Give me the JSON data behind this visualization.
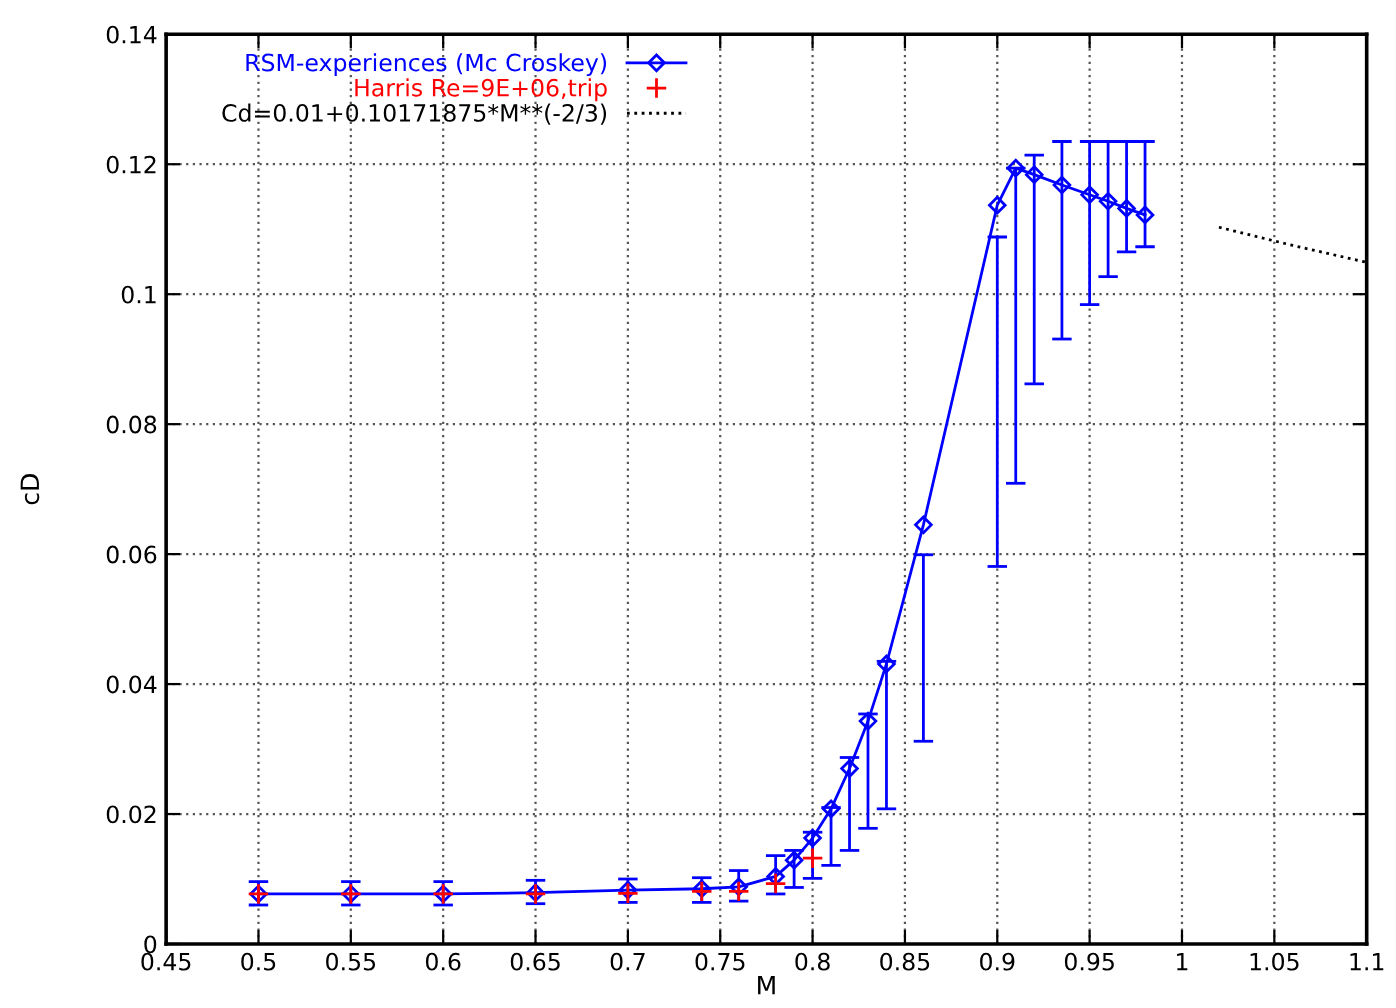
{
  "chart_data": {
    "type": "line",
    "xlabel": "M",
    "ylabel": "cD",
    "xlim": [
      0.45,
      1.1
    ],
    "xticks": [
      0.45,
      0.5,
      0.55,
      0.6,
      0.65,
      0.7,
      0.75,
      0.8,
      0.85,
      0.9,
      0.95,
      1,
      1.05,
      1.1
    ],
    "ylim": [
      0,
      0.14
    ],
    "yticks": [
      0,
      0.02,
      0.04,
      0.06,
      0.08,
      0.1,
      0.12,
      0.14
    ],
    "grid": true,
    "legend": "top left",
    "series": [
      {
        "name": "RSM-experiences (Mc Croskey)",
        "color": "#0000ff",
        "marker": "diamond",
        "line_style": "solid",
        "x": [
          0.5,
          0.55,
          0.6,
          0.65,
          0.7,
          0.74,
          0.76,
          0.78,
          0.79,
          0.8,
          0.81,
          0.82,
          0.83,
          0.84,
          0.86,
          0.9,
          0.91,
          0.92,
          0.935,
          0.95,
          0.96,
          0.97,
          0.98
        ],
        "values": [
          0.0077,
          0.0077,
          0.0077,
          0.0079,
          0.0083,
          0.0085,
          0.0088,
          0.0104,
          0.0129,
          0.0163,
          0.0208,
          0.027,
          0.0343,
          0.0431,
          0.0645,
          0.1137,
          0.1194,
          0.1184,
          0.1168,
          0.1153,
          0.1143,
          0.1132,
          0.1122
        ],
        "errors": [
          [
            0.006,
            0.0096
          ],
          [
            0.006,
            0.0096
          ],
          [
            0.006,
            0.0096
          ],
          [
            0.0062,
            0.0098
          ],
          [
            0.0064,
            0.01
          ],
          [
            0.0064,
            0.0102
          ],
          [
            0.0066,
            0.0113
          ],
          [
            0.0077,
            0.0136
          ],
          [
            0.0087,
            0.0144
          ],
          [
            0.0101,
            0.0172
          ],
          [
            0.0121,
            0.021
          ],
          [
            0.0144,
            0.0287
          ],
          [
            0.0178,
            0.0354
          ],
          [
            0.0208,
            0.0435
          ],
          [
            0.0312,
            0.0599
          ],
          [
            0.0581,
            0.1088
          ],
          [
            0.0709,
            0.1194
          ],
          [
            0.0862,
            0.1214
          ],
          [
            0.0931,
            0.1235
          ],
          [
            0.0984,
            0.1235
          ],
          [
            0.1027,
            0.1235
          ],
          [
            0.1065,
            0.1235
          ],
          [
            0.1073,
            0.1235
          ]
        ]
      },
      {
        "name": "Harris Re=9E+06,trip",
        "type": "scatter",
        "color": "#ff0000",
        "marker": "cross",
        "x": [
          0.5,
          0.55,
          0.6,
          0.65,
          0.7,
          0.74,
          0.76,
          0.78,
          0.8
        ],
        "values": [
          0.0077,
          0.0077,
          0.0077,
          0.0077,
          0.0078,
          0.0081,
          0.0081,
          0.0093,
          0.0132
        ]
      },
      {
        "name": "Cd=0.01+0.10171875*M**(-2/3)",
        "color": "#000000",
        "marker": "none",
        "line_style": "dotted",
        "x": [
          1.02,
          1.04,
          1.06,
          1.08,
          1.1
        ],
        "values": [
          0.1103,
          0.1089,
          0.1075,
          0.1062,
          0.1049
        ]
      }
    ]
  }
}
